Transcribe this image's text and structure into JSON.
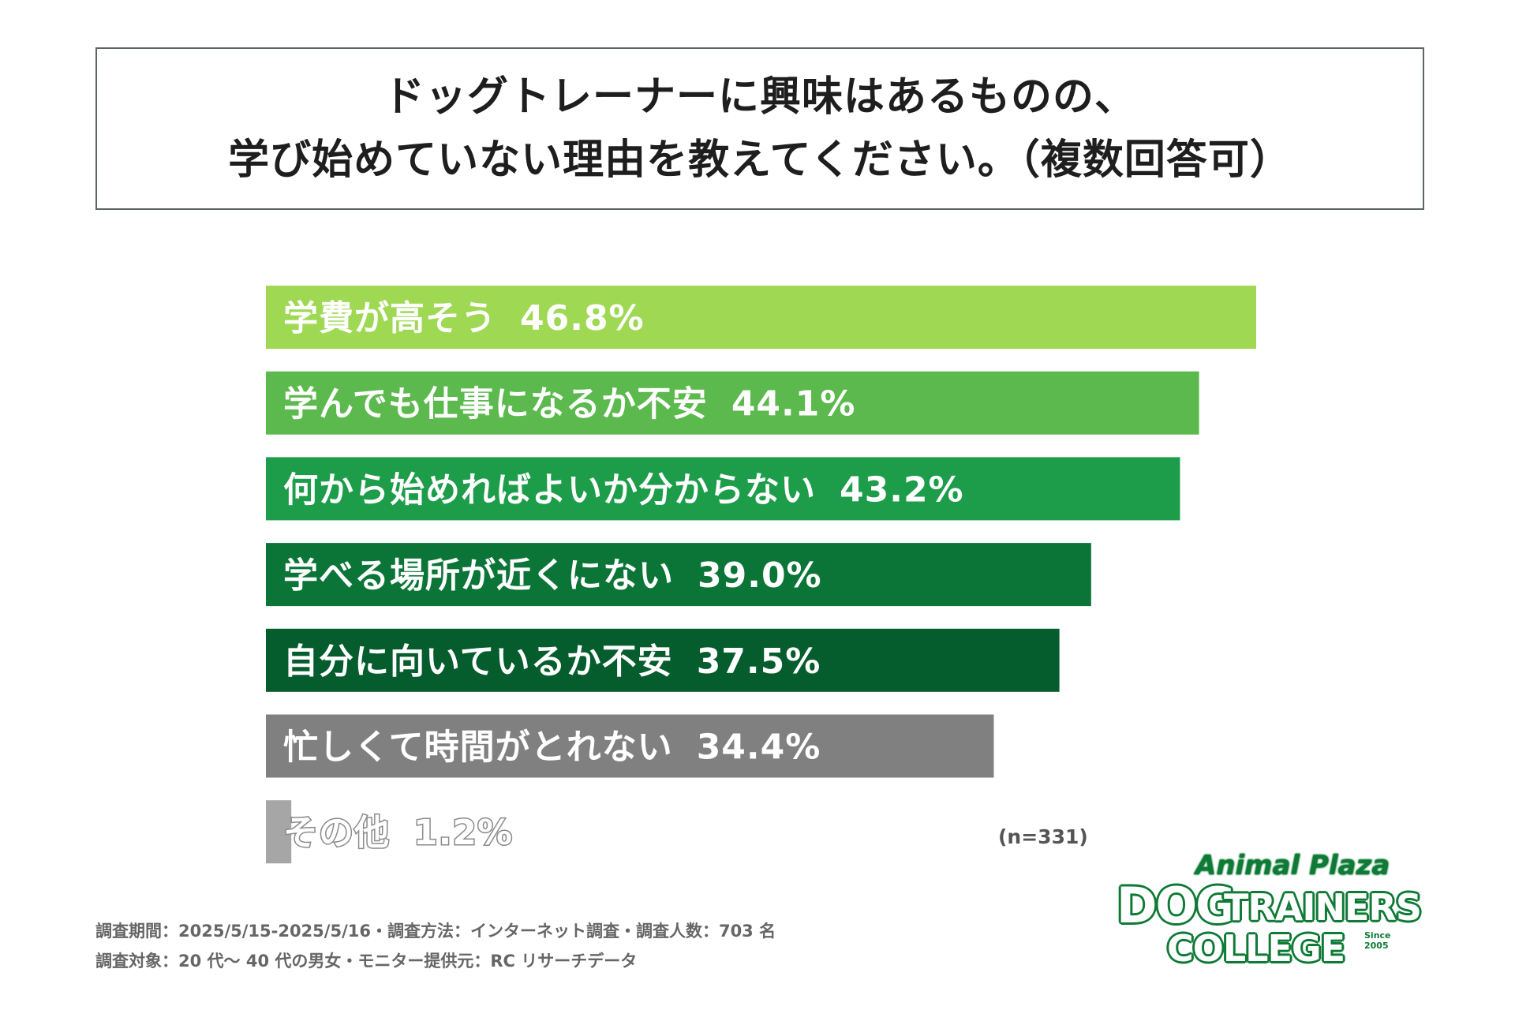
{
  "title": {
    "line1": "ドッグトレーナーに興味はあるものの、",
    "line2": "学び始めていない理由を教えてください。（複数回答可）"
  },
  "chart_data": {
    "type": "bar",
    "orientation": "horizontal",
    "title": "ドッグトレーナーに興味はあるものの、学び始めていない理由を教えてください。（複数回答可）",
    "categories": [
      "学費が高そう",
      "学んでも仕事になるか不安",
      "何から始めればよいか分からない",
      "学べる場所が近くにない",
      "自分に向いているか不安",
      "忙しくて時間がとれない",
      "その他"
    ],
    "values": [
      46.8,
      44.1,
      43.2,
      39.0,
      37.5,
      34.4,
      1.2
    ],
    "value_labels": [
      "46.8%",
      "44.1%",
      "43.2%",
      "39.0%",
      "37.5%",
      "34.4%",
      "1.2%"
    ],
    "colors": [
      "#9fd954",
      "#5cb94d",
      "#1d9d4a",
      "#0b7537",
      "#055c2d",
      "#808080",
      "#a6a6a6"
    ],
    "xlim": [
      0,
      46.8
    ],
    "grid": false,
    "legend": "none"
  },
  "sample_note": "(n=331)",
  "footer": {
    "line1": "調査期間：2025/5/15-2025/5/16・調査方法：インターネット調査・調査人数：703 名",
    "line2": "調査対象：20 代〜 40 代の男女・モニター提供元：RC リサーチデータ"
  },
  "logo": {
    "top": "Animal Plaza",
    "dog": "DOG",
    "trainers": "TRAINERS",
    "college": "COLLEGE",
    "since": "Since 2005",
    "color": "#0e7a35"
  }
}
